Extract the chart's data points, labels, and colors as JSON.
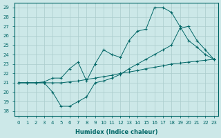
{
  "xlabel": "Humidex (Indice chaleur)",
  "background_color": "#cce8e8",
  "line_color": "#006666",
  "grid_color": "#aacccc",
  "xlim": [
    -0.5,
    23.5
  ],
  "ylim": [
    17.5,
    29.5
  ],
  "yticks": [
    18,
    19,
    20,
    21,
    22,
    23,
    24,
    25,
    26,
    27,
    28,
    29
  ],
  "xticks": [
    0,
    1,
    2,
    3,
    4,
    5,
    6,
    7,
    8,
    9,
    10,
    11,
    12,
    13,
    14,
    15,
    16,
    17,
    18,
    19,
    20,
    21,
    22,
    23
  ],
  "line1_x": [
    0,
    1,
    2,
    3,
    4,
    5,
    6,
    7,
    8,
    9,
    10,
    11,
    12,
    13,
    14,
    15,
    16,
    17,
    18,
    19,
    20,
    21,
    22,
    23
  ],
  "line1_y": [
    21.0,
    21.0,
    21.0,
    21.0,
    21.0,
    21.0,
    21.1,
    21.2,
    21.35,
    21.5,
    21.65,
    21.8,
    22.0,
    22.15,
    22.3,
    22.5,
    22.65,
    22.8,
    23.0,
    23.1,
    23.2,
    23.3,
    23.4,
    23.5
  ],
  "line2_x": [
    0,
    1,
    2,
    3,
    4,
    5,
    6,
    7,
    8,
    9,
    10,
    11,
    12,
    13,
    14,
    15,
    16,
    17,
    18,
    19,
    20,
    21,
    22,
    23
  ],
  "line2_y": [
    21.0,
    21.0,
    21.0,
    21.1,
    21.5,
    21.5,
    22.5,
    23.2,
    21.2,
    23.0,
    24.5,
    24.0,
    23.7,
    25.5,
    26.5,
    26.7,
    29.0,
    29.0,
    28.5,
    27.0,
    25.5,
    24.8,
    24.0,
    23.5
  ],
  "line3_x": [
    0,
    1,
    2,
    3,
    4,
    5,
    6,
    7,
    8,
    9,
    10,
    11,
    12,
    13,
    14,
    15,
    16,
    17,
    18,
    19,
    20,
    21,
    22,
    23
  ],
  "line3_y": [
    21.0,
    21.0,
    21.0,
    21.0,
    20.0,
    18.5,
    18.5,
    19.0,
    19.5,
    21.0,
    21.2,
    21.5,
    21.9,
    22.5,
    23.0,
    23.5,
    24.0,
    24.5,
    25.0,
    26.8,
    27.0,
    25.5,
    24.5,
    23.5
  ]
}
